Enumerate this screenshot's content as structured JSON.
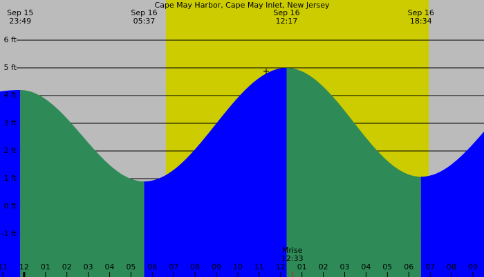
{
  "chart_data": {
    "type": "tide",
    "title": "Cape May Harbor, Cape May Inlet, New Jersey",
    "xlim": [
      -1.13,
      21.52
    ],
    "ylim": [
      -2.55,
      7.45
    ],
    "yticks": [
      {
        "value": -1,
        "label": "-1 ft"
      },
      {
        "value": 0,
        "label": "0 ft"
      },
      {
        "value": 1,
        "label": "1 ft"
      },
      {
        "value": 2,
        "label": "2 ft"
      },
      {
        "value": 3,
        "label": "3 ft"
      },
      {
        "value": 4,
        "label": "4 ft"
      },
      {
        "value": 5,
        "label": "5 ft"
      },
      {
        "value": 6,
        "label": "6 ft"
      }
    ],
    "xticks": [
      {
        "value": -1,
        "label": "11"
      },
      {
        "value": 0,
        "label": "12"
      },
      {
        "value": 1,
        "label": "01"
      },
      {
        "value": 2,
        "label": "02"
      },
      {
        "value": 3,
        "label": "03"
      },
      {
        "value": 4,
        "label": "04"
      },
      {
        "value": 5,
        "label": "05"
      },
      {
        "value": 6,
        "label": "06"
      },
      {
        "value": 7,
        "label": "07"
      },
      {
        "value": 8,
        "label": "08"
      },
      {
        "value": 9,
        "label": "09"
      },
      {
        "value": 10,
        "label": "10"
      },
      {
        "value": 11,
        "label": "11"
      },
      {
        "value": 12,
        "label": "12"
      },
      {
        "value": 13,
        "label": "01"
      },
      {
        "value": 14,
        "label": "02"
      },
      {
        "value": 15,
        "label": "03"
      },
      {
        "value": 16,
        "label": "04"
      },
      {
        "value": 17,
        "label": "05"
      },
      {
        "value": 18,
        "label": "06"
      },
      {
        "value": 19,
        "label": "07"
      },
      {
        "value": 20,
        "label": "08"
      },
      {
        "value": 21,
        "label": "09"
      }
    ],
    "extremes": [
      {
        "date": "Sep 15",
        "time": "23:49",
        "x": -0.183,
        "height": 4.2
      },
      {
        "date": "Sep 16",
        "time": "05:37",
        "x": 5.617,
        "height": 0.9
      },
      {
        "date": "Sep 16",
        "time": "12:17",
        "x": 12.283,
        "height": 5.0
      },
      {
        "date": "Sep 16",
        "time": "18:34",
        "x": 18.567,
        "height": 1.07
      }
    ],
    "edges": [
      {
        "x": -1.13,
        "height": 4.15
      },
      {
        "x": 21.52,
        "height": 2.7
      }
    ],
    "daylight": [
      6.63,
      18.93
    ],
    "moon": {
      "label": "Mrise",
      "time": "12:33",
      "x": 12.55
    },
    "colors": {
      "night": "#bbbbbb",
      "day": "#cccc00",
      "rising": "#0000ff",
      "falling": "#2e8b57"
    }
  }
}
